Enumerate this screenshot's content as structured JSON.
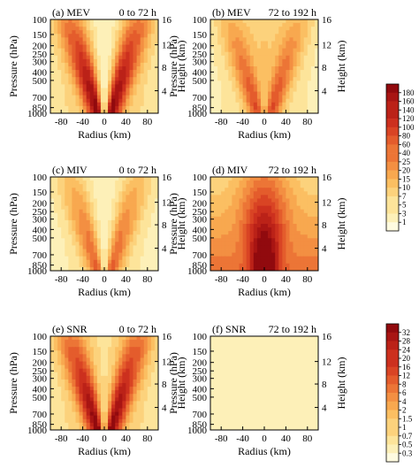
{
  "colors": {
    "scale": [
      "#fffbe0",
      "#fdf0b8",
      "#fde49a",
      "#fcd27c",
      "#fbbf62",
      "#f8a84f",
      "#f38f42",
      "#ec7536",
      "#e45c2c",
      "#d94424",
      "#cc301e",
      "#bb2218",
      "#a81513",
      "#910a0e"
    ]
  },
  "chart_data": {
    "type": "heatmap",
    "xlabel": "Radius (km)",
    "ylabel_left": "Pressure (hPa)",
    "ylabel_right": "Height (km)",
    "x_ticks": [
      "-80",
      "-40",
      "0",
      "40",
      "80"
    ],
    "pressure_ticks": [
      "100",
      "150",
      "200",
      "250",
      "300",
      "400",
      "500",
      "700",
      "850",
      "1000"
    ],
    "height_ticks": [
      "16",
      "12",
      "8",
      "4"
    ],
    "xlim": [
      -100,
      100
    ],
    "panels": [
      {
        "label": "(a) MEV",
        "period": "0 to 72 h",
        "colorbar": 1,
        "pattern": "v-shape",
        "ring_intensity": 0.85,
        "center_intensity": 0.02
      },
      {
        "label": "(b) MEV",
        "period": "72 to 192 h",
        "colorbar": 1,
        "pattern": "v-shape",
        "ring_intensity": 0.55,
        "center_intensity": 0.25
      },
      {
        "label": "(c) MIV",
        "period": "0 to 72 h",
        "colorbar": 1,
        "pattern": "v-shape",
        "ring_intensity": 0.5,
        "center_intensity": 0.05
      },
      {
        "label": "(d) MIV",
        "period": "72 to 192 h",
        "colorbar": 1,
        "pattern": "column",
        "ring_intensity": 0.75,
        "center_intensity": 0.55
      },
      {
        "label": "(e) SNR",
        "period": "0 to 72 h",
        "colorbar": 2,
        "pattern": "v-shape",
        "ring_intensity": 0.85,
        "center_intensity": 0.15
      },
      {
        "label": "(f) SNR",
        "period": "72 to 192 h",
        "colorbar": 2,
        "pattern": "flat",
        "ring_intensity": 0.06,
        "center_intensity": 0.02
      }
    ],
    "colorbars": [
      {
        "ticks": [
          "180",
          "160",
          "140",
          "120",
          "100",
          "80",
          "60",
          "40",
          "25",
          "20",
          "15",
          "10",
          "7",
          "5",
          "3",
          "1"
        ]
      },
      {
        "ticks": [
          "32",
          "28",
          "24",
          "20",
          "16",
          "12",
          "8",
          "6",
          "4",
          "2",
          "1.5",
          "1",
          "0.7",
          "0.5",
          "0.3"
        ]
      }
    ]
  }
}
